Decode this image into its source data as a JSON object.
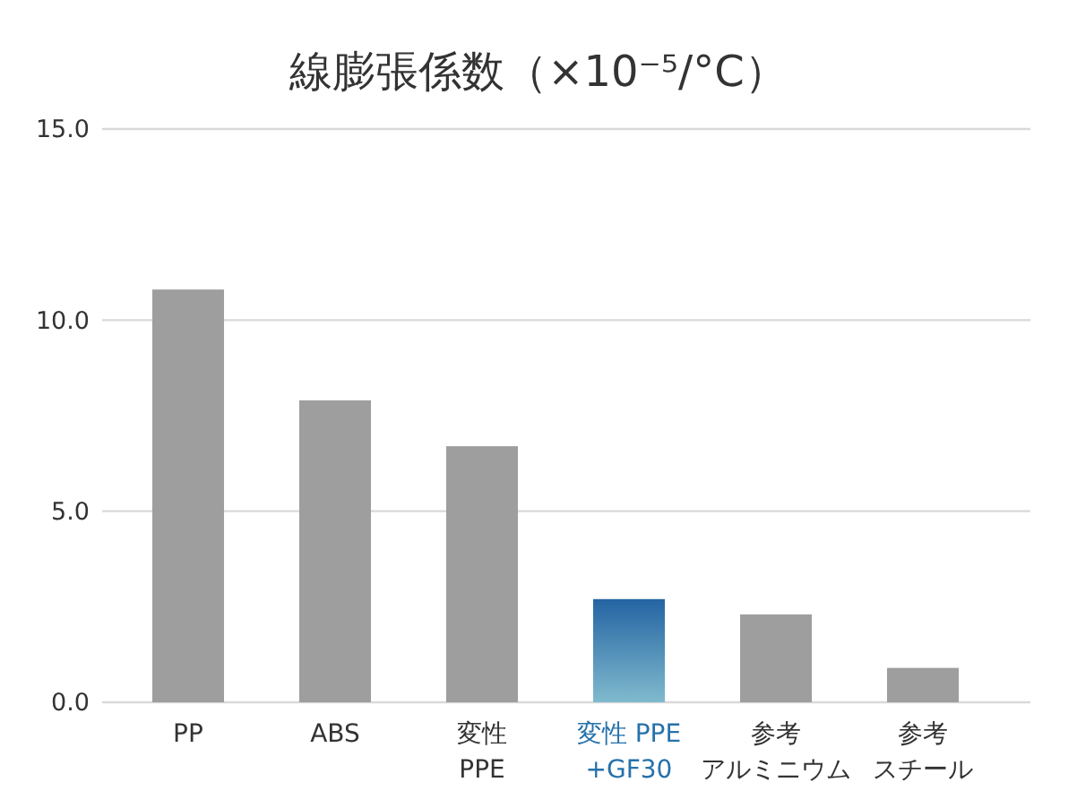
{
  "chart_data": {
    "type": "bar",
    "title": "線膨張係数（×10⁻⁵/°C）",
    "categories": [
      "PP",
      "ABS",
      "変性\nPPE",
      "変性 PPE\n+GF30",
      "参考アルミニウム",
      "参考スチール"
    ],
    "values": [
      10.8,
      7.9,
      6.7,
      2.7,
      2.3,
      0.9
    ],
    "colors": [
      "#9e9e9e",
      "#9e9e9e",
      "#9e9e9e",
      "#2a7fbe",
      "#9e9e9e",
      "#9e9e9e"
    ],
    "ylim": [
      0,
      15
    ],
    "yticks": [
      {
        "value": 0,
        "label": "0.0"
      },
      {
        "value": 5,
        "label": "5.0"
      },
      {
        "value": 10,
        "label": "10.0"
      },
      {
        "value": 15,
        "label": "15.0"
      }
    ],
    "grid": "y"
  }
}
